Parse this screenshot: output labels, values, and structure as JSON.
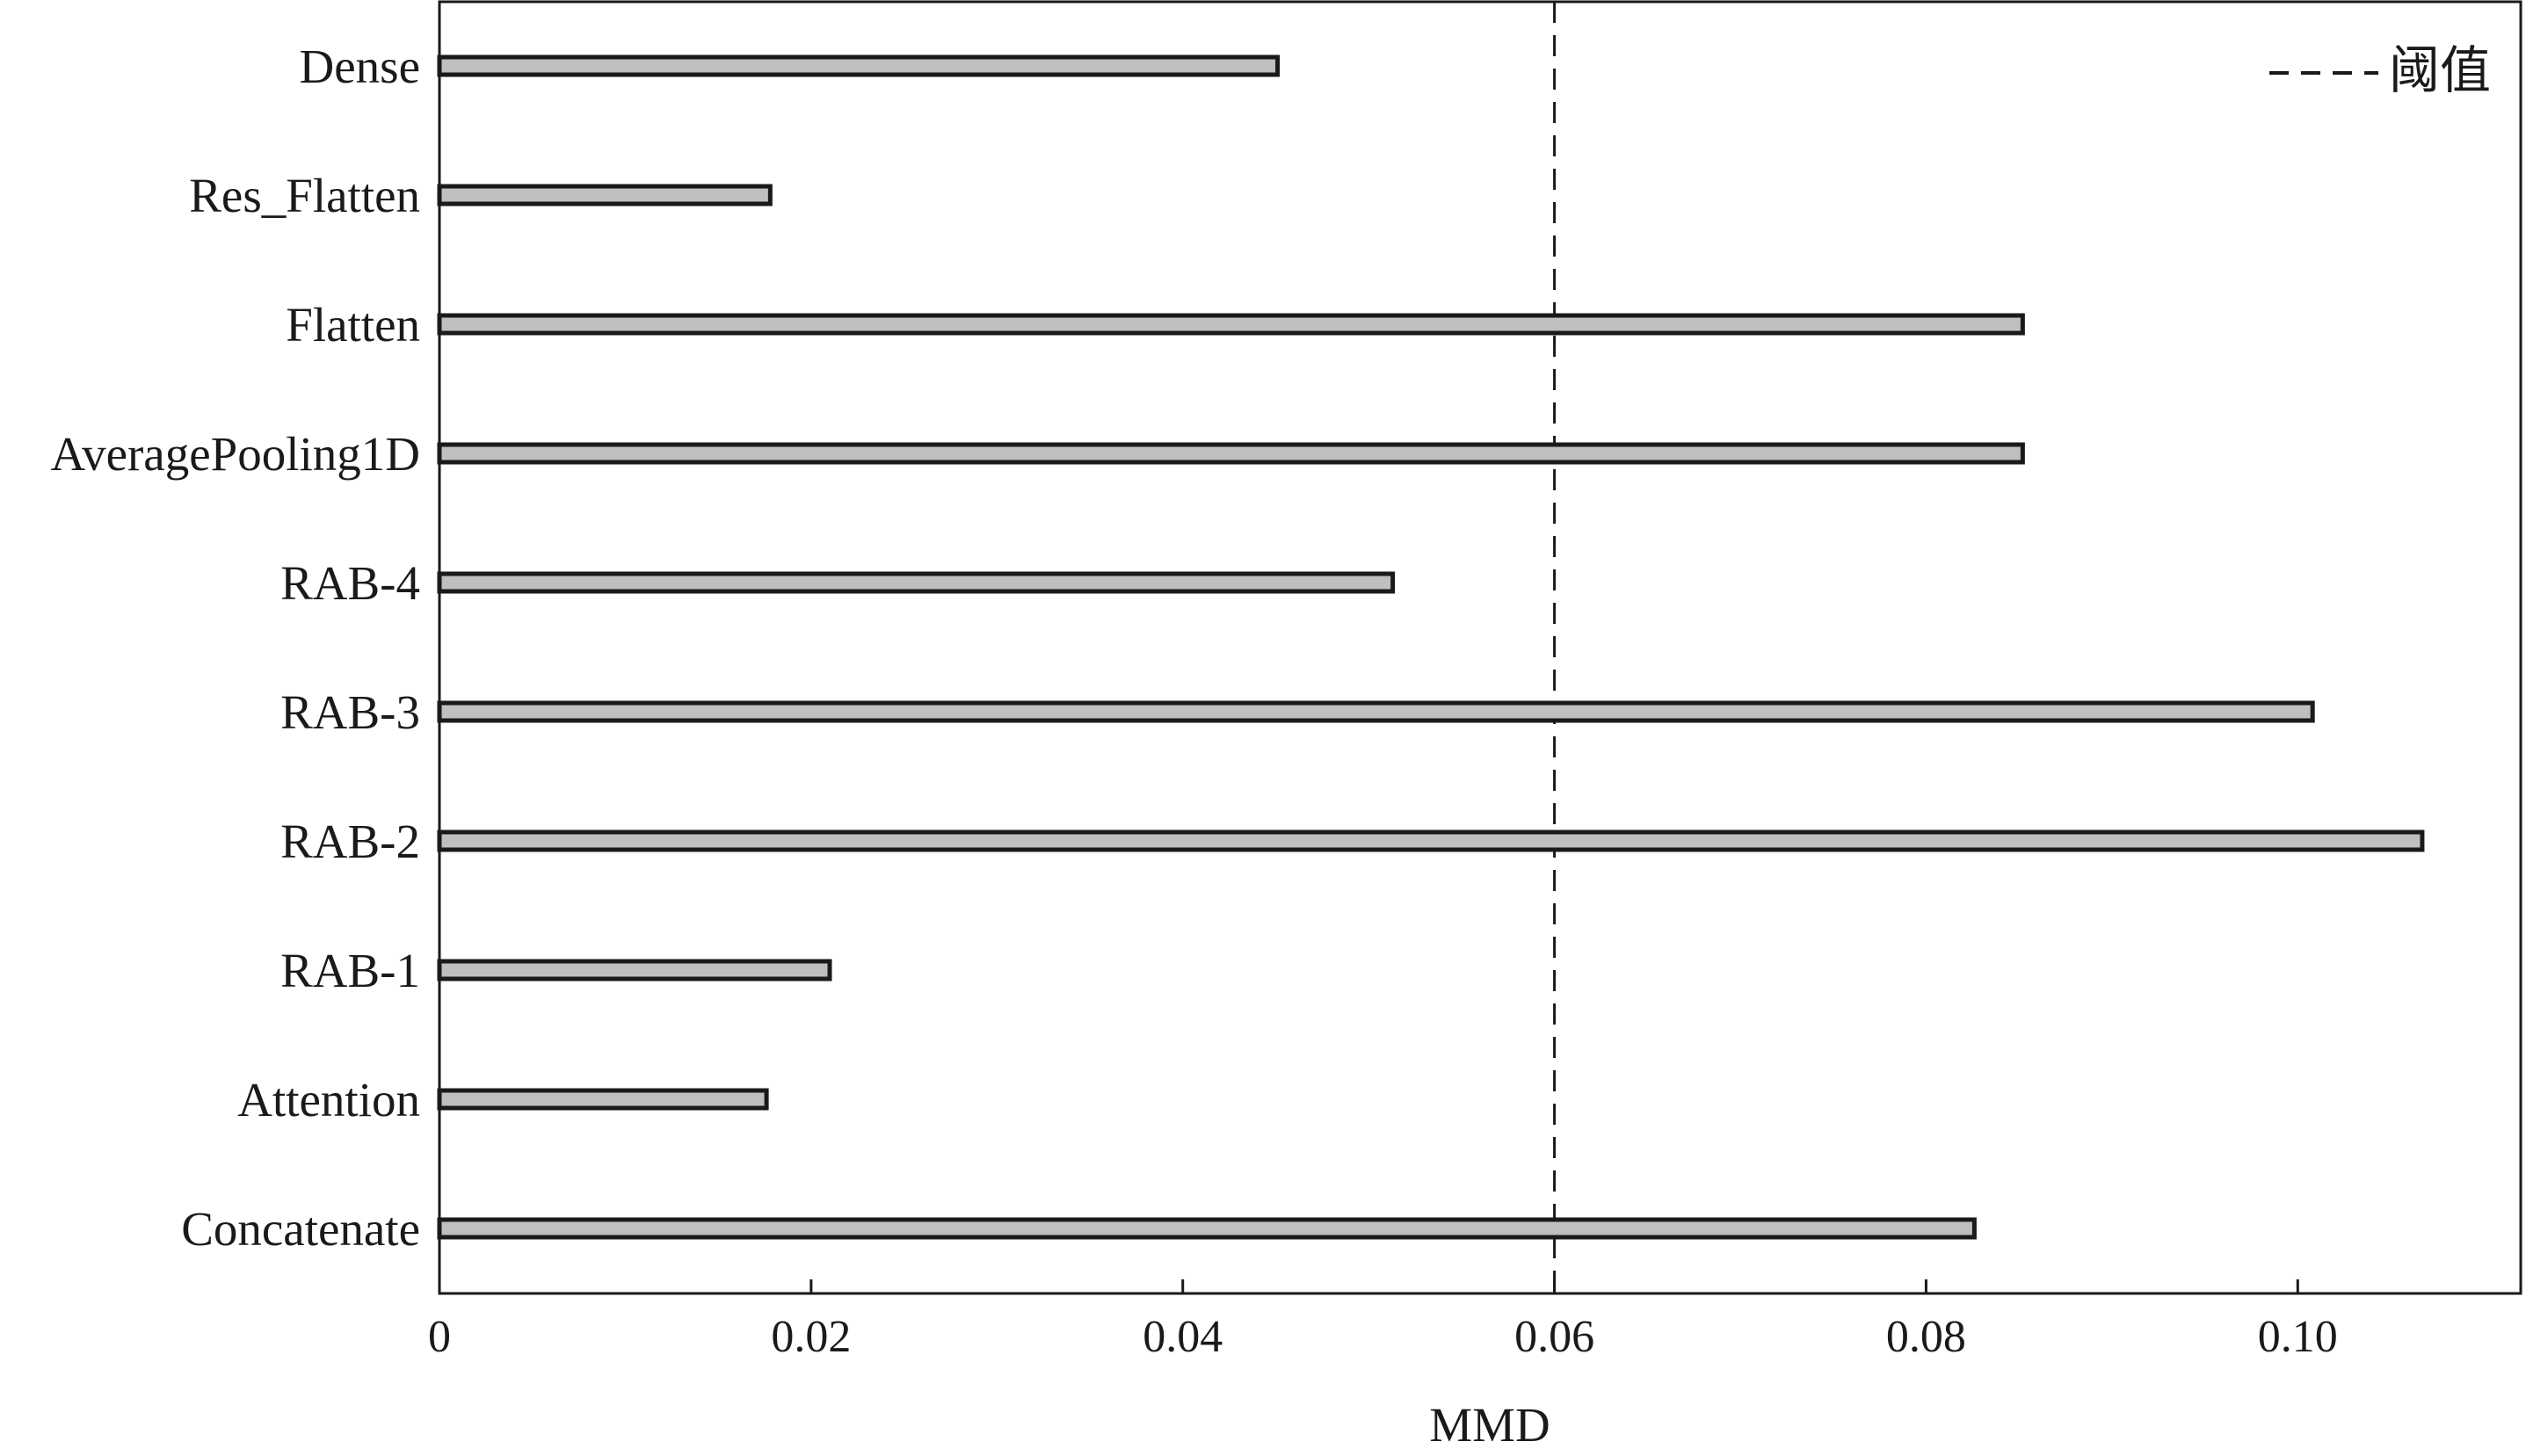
{
  "chart_data": {
    "type": "bar",
    "orientation": "horizontal",
    "categories": [
      "Dense",
      "Res_Flatten",
      "Flatten",
      "AveragePooling1D",
      "RAB-4",
      "RAB-3",
      "RAB-2",
      "RAB-1",
      "Attention",
      "Concatenate"
    ],
    "values": [
      0.0451,
      0.0178,
      0.0852,
      0.0852,
      0.0513,
      0.1008,
      0.1067,
      0.021,
      0.0176,
      0.0826
    ],
    "threshold": 0.06,
    "legend": {
      "label": "阈值",
      "position": "top-right"
    },
    "xlabel": "MMD",
    "xlim": [
      0,
      0.112
    ],
    "xticks": [
      0,
      0.02,
      0.04,
      0.06,
      0.08,
      0.1
    ],
    "xtick_labels": [
      "0",
      "0.02",
      "0.04",
      "0.06",
      "0.08",
      "0.10"
    ],
    "grid": false,
    "colors": {
      "bar_fill": "#bfbfbf",
      "bar_edge": "#1a1a1a",
      "axis": "#1a1a1a",
      "threshold_line": "#1a1a1a"
    }
  }
}
